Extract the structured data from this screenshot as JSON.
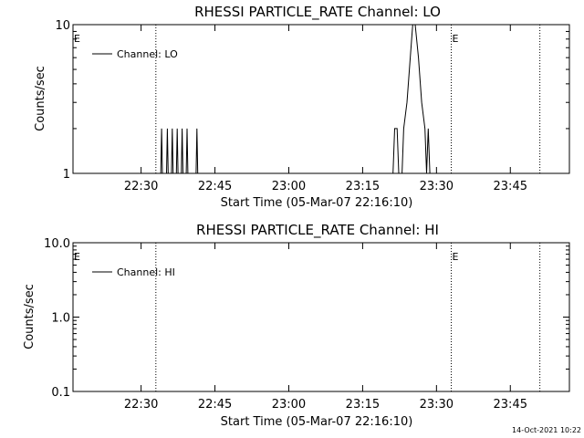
{
  "chart_data": [
    {
      "type": "line",
      "title": "RHESSI PARTICLE_RATE Channel: LO",
      "xlabel": "Start Time (05-Mar-07 22:16:10)",
      "ylabel": "Counts/sec",
      "yscale": "log",
      "ylim": [
        1,
        10
      ],
      "yticks": [
        "1",
        "10"
      ],
      "xlim": [
        "22:16:10",
        "23:57:00"
      ],
      "xticks": [
        "22:30",
        "22:45",
        "23:00",
        "23:15",
        "23:30",
        "23:45"
      ],
      "grid": false,
      "legend_position": "top-left",
      "event_markers": [
        {
          "label": "E",
          "time": "22:16:10"
        },
        {
          "label": "E",
          "time": "23:33:00"
        }
      ],
      "dotted_lines": [
        "22:33:00",
        "23:33:00",
        "23:51:00"
      ],
      "series": [
        {
          "name": "Channel: LO",
          "points": [
            [
              "22:16:10",
              1
            ],
            [
              "22:34:00",
              1
            ],
            [
              "22:34:10",
              2
            ],
            [
              "22:34:20",
              1
            ],
            [
              "22:35:10",
              1
            ],
            [
              "22:35:20",
              2
            ],
            [
              "22:35:30",
              1
            ],
            [
              "22:36:10",
              1
            ],
            [
              "22:36:20",
              2
            ],
            [
              "22:36:30",
              1
            ],
            [
              "22:37:10",
              1
            ],
            [
              "22:37:20",
              2
            ],
            [
              "22:37:30",
              1
            ],
            [
              "22:38:10",
              1
            ],
            [
              "22:38:20",
              2
            ],
            [
              "22:38:30",
              1
            ],
            [
              "22:39:10",
              1
            ],
            [
              "22:39:20",
              2
            ],
            [
              "22:39:30",
              1
            ],
            [
              "22:41:10",
              1
            ],
            [
              "22:41:20",
              2
            ],
            [
              "22:41:30",
              1
            ],
            [
              "23:21:10",
              1
            ],
            [
              "23:21:30",
              2
            ],
            [
              "23:22:00",
              2
            ],
            [
              "23:22:20",
              1
            ],
            [
              "23:23:00",
              1
            ],
            [
              "23:23:20",
              2
            ],
            [
              "23:24:00",
              3
            ],
            [
              "23:24:40",
              6
            ],
            [
              "23:25:10",
              10
            ],
            [
              "23:25:40",
              10
            ],
            [
              "23:26:20",
              6
            ],
            [
              "23:27:00",
              3
            ],
            [
              "23:27:40",
              2
            ],
            [
              "23:28:00",
              1
            ],
            [
              "23:28:20",
              2
            ],
            [
              "23:28:40",
              1
            ],
            [
              "23:57:00",
              1
            ]
          ]
        }
      ]
    },
    {
      "type": "line",
      "title": "RHESSI PARTICLE_RATE Channel: HI",
      "xlabel": "Start Time (05-Mar-07 22:16:10)",
      "ylabel": "Counts/sec",
      "yscale": "log",
      "ylim": [
        0.1,
        10.0
      ],
      "yticks": [
        "0.1",
        "1.0",
        "10.0"
      ],
      "xlim": [
        "22:16:10",
        "23:57:00"
      ],
      "xticks": [
        "22:30",
        "22:45",
        "23:00",
        "23:15",
        "23:30",
        "23:45"
      ],
      "grid": false,
      "legend_position": "top-left",
      "event_markers": [
        {
          "label": "E",
          "time": "22:16:10"
        },
        {
          "label": "E",
          "time": "23:33:00"
        }
      ],
      "dotted_lines": [
        "22:33:00",
        "23:33:00",
        "23:51:00"
      ],
      "series": [
        {
          "name": "Channel: HI",
          "points": []
        }
      ]
    }
  ],
  "footer": {
    "timestamp": "14-Oct-2021 10:22"
  }
}
